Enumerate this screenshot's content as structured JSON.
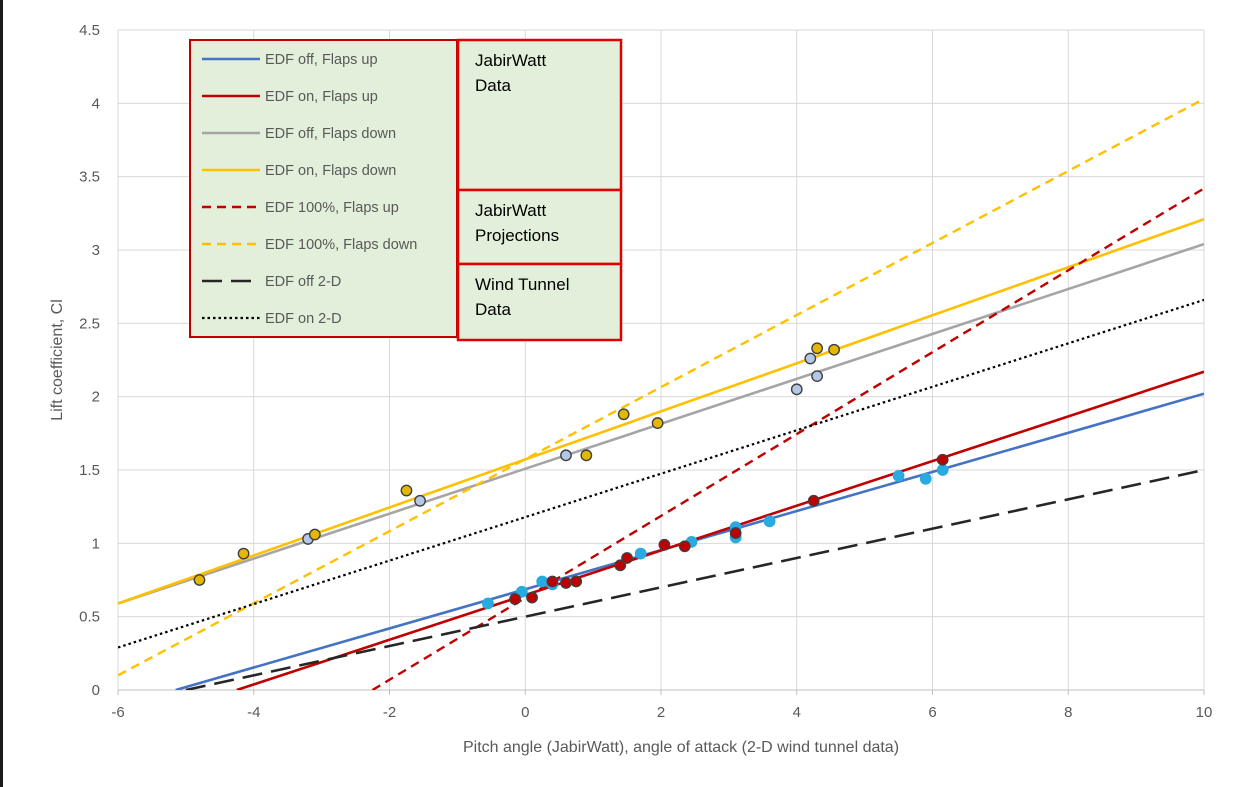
{
  "chart_data": {
    "type": "scatter",
    "xlabel": "Pitch angle (JabirWatt), angle of attack (2-D wind tunnel data)",
    "ylabel": "Lift coefficient, Cl",
    "xlim": [
      -6,
      10
    ],
    "ylim": [
      0,
      4.5
    ],
    "x_ticks": [
      -6,
      -4,
      -2,
      0,
      2,
      4,
      6,
      8,
      10
    ],
    "y_ticks": [
      0,
      0.5,
      1,
      1.5,
      2,
      2.5,
      3,
      3.5,
      4,
      4.5
    ],
    "x_tick_labels": [
      "-6",
      "-4",
      "-2",
      "0",
      "2",
      "4",
      "6",
      "8",
      "10"
    ],
    "y_tick_labels": [
      "0",
      "0.5",
      "1",
      "1.5",
      "2",
      "2.5",
      "3",
      "3.5",
      "4",
      "4.5"
    ],
    "grid": "vertical and horizontal major gridlines",
    "legend_position": "top-left",
    "series": [
      {
        "name": "EDF off, Flaps up",
        "kind": "trendline",
        "color": "#4472C4",
        "dash": "solid",
        "x": [
          -5.15,
          10
        ],
        "y": [
          0,
          2.02
        ]
      },
      {
        "name": "EDF on, Flaps up",
        "kind": "trendline",
        "color": "#C00000",
        "dash": "solid",
        "x": [
          -4.25,
          10
        ],
        "y": [
          0,
          2.17
        ]
      },
      {
        "name": "EDF off, Flaps down",
        "kind": "trendline",
        "color": "#A5A5A5",
        "dash": "solid",
        "x": [
          -6,
          10
        ],
        "y": [
          0.59,
          3.04
        ]
      },
      {
        "name": "EDF on, Flaps down",
        "kind": "trendline",
        "color": "#FFC000",
        "dash": "solid",
        "x": [
          -6,
          10
        ],
        "y": [
          0.59,
          3.21
        ]
      },
      {
        "name": "EDF 100%, Flaps up",
        "kind": "projection",
        "color": "#C00000",
        "dash": "dashed",
        "x": [
          -2.25,
          10
        ],
        "y": [
          0,
          3.42
        ]
      },
      {
        "name": "EDF 100%, Flaps down",
        "kind": "projection",
        "color": "#FFC000",
        "dash": "dashed",
        "x": [
          -6,
          10
        ],
        "y": [
          0.1,
          4.03
        ]
      },
      {
        "name": "EDF off 2-D",
        "kind": "wind-tunnel",
        "color": "#262626",
        "dash": "long-dash",
        "x": [
          -5,
          10
        ],
        "y": [
          0,
          1.5
        ]
      },
      {
        "name": "EDF on 2-D",
        "kind": "wind-tunnel",
        "color": "#000000",
        "dash": "dotted",
        "x": [
          -6,
          10
        ],
        "y": [
          0.29,
          2.66
        ]
      }
    ],
    "points": [
      {
        "group": "EDF off, Flaps up",
        "fill": "#29AAE1",
        "x": [
          -0.55,
          -0.05,
          0.25,
          0.4,
          1.7,
          2.45,
          3.1,
          3.1,
          3.6,
          5.5,
          5.9,
          6.15
        ],
        "y": [
          0.59,
          0.67,
          0.74,
          0.72,
          0.93,
          1.01,
          1.11,
          1.04,
          1.15,
          1.46,
          1.44,
          1.5
        ]
      },
      {
        "group": "EDF on, Flaps up",
        "fill": "#C00000",
        "x": [
          -0.15,
          0.1,
          0.4,
          0.6,
          0.75,
          1.4,
          1.5,
          2.05,
          2.35,
          3.1,
          4.25,
          6.15
        ],
        "y": [
          0.62,
          0.63,
          0.74,
          0.73,
          0.74,
          0.85,
          0.9,
          0.99,
          0.98,
          1.07,
          1.29,
          1.57
        ]
      },
      {
        "group": "EDF off, Flaps down",
        "fill": "#B4C7E7",
        "x": [
          -3.2,
          -1.55,
          0.6,
          4.0,
          4.2,
          4.3
        ],
        "y": [
          1.03,
          1.29,
          1.6,
          2.05,
          2.26,
          2.14
        ]
      },
      {
        "group": "EDF on, Flaps down",
        "fill": "#E4B800",
        "x": [
          -4.8,
          -4.15,
          -3.1,
          -1.75,
          0.9,
          1.45,
          1.95,
          4.3,
          4.55
        ],
        "y": [
          0.75,
          0.93,
          1.06,
          1.36,
          1.6,
          1.88,
          1.82,
          2.33,
          2.32
        ]
      }
    ],
    "annotations": {
      "data": {
        "lines": [
          "JabirWatt",
          "Data"
        ]
      },
      "projections": {
        "lines": [
          "JabirWatt",
          "Projections"
        ]
      },
      "wind_tunnel": {
        "lines": [
          "Wind Tunnel",
          "Data"
        ]
      }
    }
  }
}
